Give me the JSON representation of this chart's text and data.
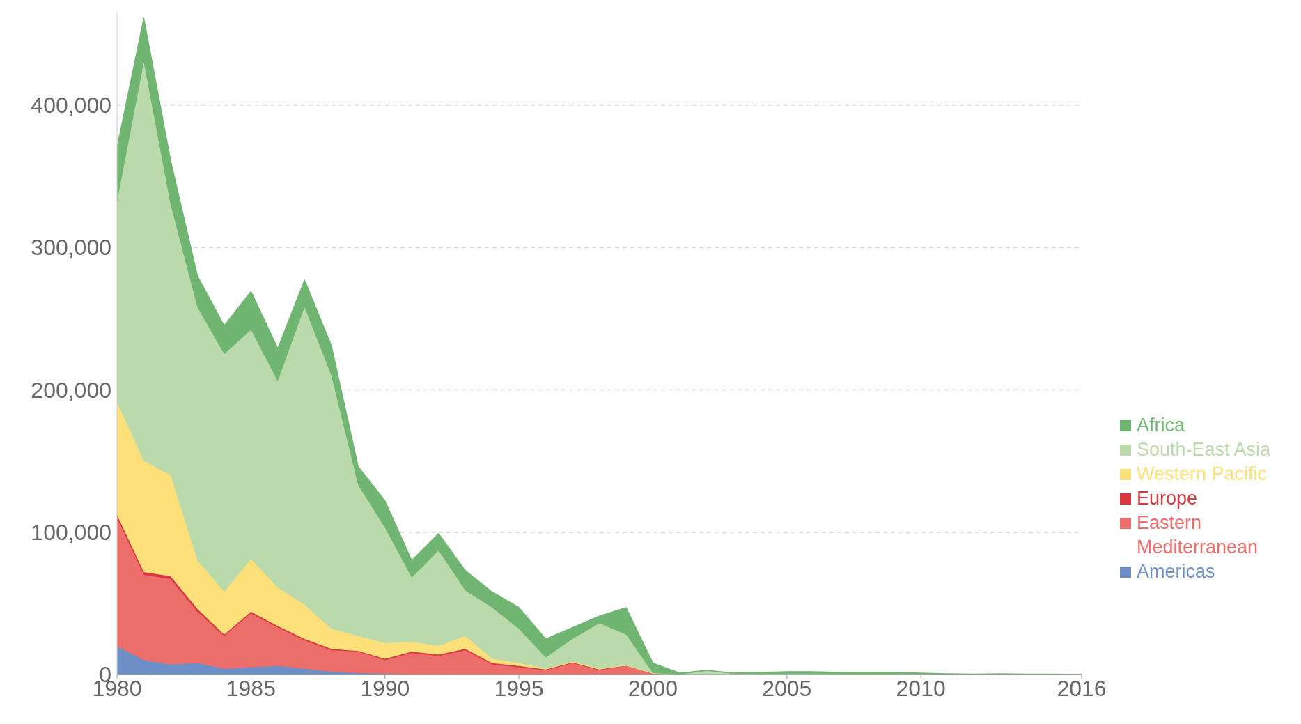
{
  "chart_data": {
    "type": "area",
    "stacked": true,
    "x": [
      1980,
      1981,
      1982,
      1983,
      1984,
      1985,
      1986,
      1987,
      1988,
      1989,
      1990,
      1991,
      1992,
      1993,
      1994,
      1995,
      1996,
      1997,
      1998,
      1999,
      2000,
      2001,
      2002,
      2003,
      2004,
      2005,
      2006,
      2007,
      2008,
      2009,
      2010,
      2011,
      2012,
      2013,
      2014,
      2015,
      2016
    ],
    "series": [
      {
        "name": "Americas",
        "color": "#6e8fc6",
        "values": [
          20000,
          10000,
          7000,
          8000,
          4000,
          5000,
          6000,
          4000,
          2000,
          1000,
          500,
          0,
          0,
          0,
          0,
          0,
          0,
          0,
          0,
          0,
          0,
          0,
          0,
          0,
          0,
          0,
          0,
          0,
          0,
          0,
          0,
          0,
          0,
          0,
          0,
          0,
          0
        ]
      },
      {
        "name": "Eastern Mediterranean",
        "color": "#ec6e6b",
        "values": [
          90000,
          60000,
          60000,
          36000,
          23000,
          38000,
          27000,
          20000,
          15000,
          15000,
          9500,
          15000,
          13000,
          17000,
          7000,
          5000,
          3000,
          8000,
          3000,
          6000,
          1000,
          0,
          0,
          0,
          0,
          0,
          0,
          0,
          0,
          0,
          0,
          0,
          0,
          0,
          0,
          0,
          0
        ]
      },
      {
        "name": "Europe",
        "color": "#d9383e",
        "values": [
          2000,
          2000,
          2000,
          2000,
          1000,
          1000,
          1000,
          1000,
          1000,
          500,
          1000,
          1000,
          1000,
          1000,
          1000,
          1000,
          500,
          500,
          500,
          500,
          0,
          0,
          0,
          0,
          0,
          0,
          0,
          0,
          0,
          0,
          0,
          0,
          0,
          0,
          0,
          0,
          0
        ]
      },
      {
        "name": "Western Pacific",
        "color": "#fde07a",
        "values": [
          79000,
          78000,
          71000,
          34000,
          30000,
          37000,
          27000,
          24000,
          14000,
          10500,
          11000,
          7000,
          6000,
          9000,
          3000,
          2000,
          500,
          500,
          500,
          0,
          0,
          0,
          0,
          0,
          0,
          0,
          0,
          0,
          0,
          0,
          0,
          0,
          0,
          0,
          0,
          0,
          0
        ]
      },
      {
        "name": "South-East Asia",
        "color": "#bbdaab",
        "values": [
          141000,
          280000,
          190000,
          178000,
          167000,
          161000,
          145000,
          209000,
          178000,
          106000,
          81000,
          45000,
          67000,
          32000,
          36000,
          24000,
          8000,
          16000,
          32000,
          21500,
          0,
          0,
          2500,
          500,
          500,
          500,
          500,
          300,
          300,
          300,
          200,
          0,
          0,
          0,
          0,
          0,
          0
        ]
      },
      {
        "name": "Africa",
        "color": "#70b572",
        "values": [
          38000,
          31000,
          31000,
          22000,
          20000,
          27000,
          23000,
          19000,
          21000,
          13000,
          19000,
          12000,
          12000,
          14000,
          11000,
          15000,
          13000,
          8000,
          5000,
          19000,
          7000,
          1000,
          500,
          500,
          1000,
          1500,
          1500,
          1200,
          1200,
          1200,
          800,
          500,
          200,
          500,
          300,
          200,
          0
        ]
      }
    ],
    "xlim": [
      1980,
      2016
    ],
    "xticks": [
      1980,
      1985,
      1990,
      1995,
      2000,
      2005,
      2010,
      2016
    ],
    "ylim": [
      0,
      465000
    ],
    "yticks": [
      {
        "value": 0,
        "label": "0"
      },
      {
        "value": 100000,
        "label": "100,000"
      },
      {
        "value": 200000,
        "label": "200,000"
      },
      {
        "value": 300000,
        "label": "300,000"
      },
      {
        "value": 400000,
        "label": "400,000"
      }
    ],
    "grid": "y",
    "legend": "bottom right"
  }
}
